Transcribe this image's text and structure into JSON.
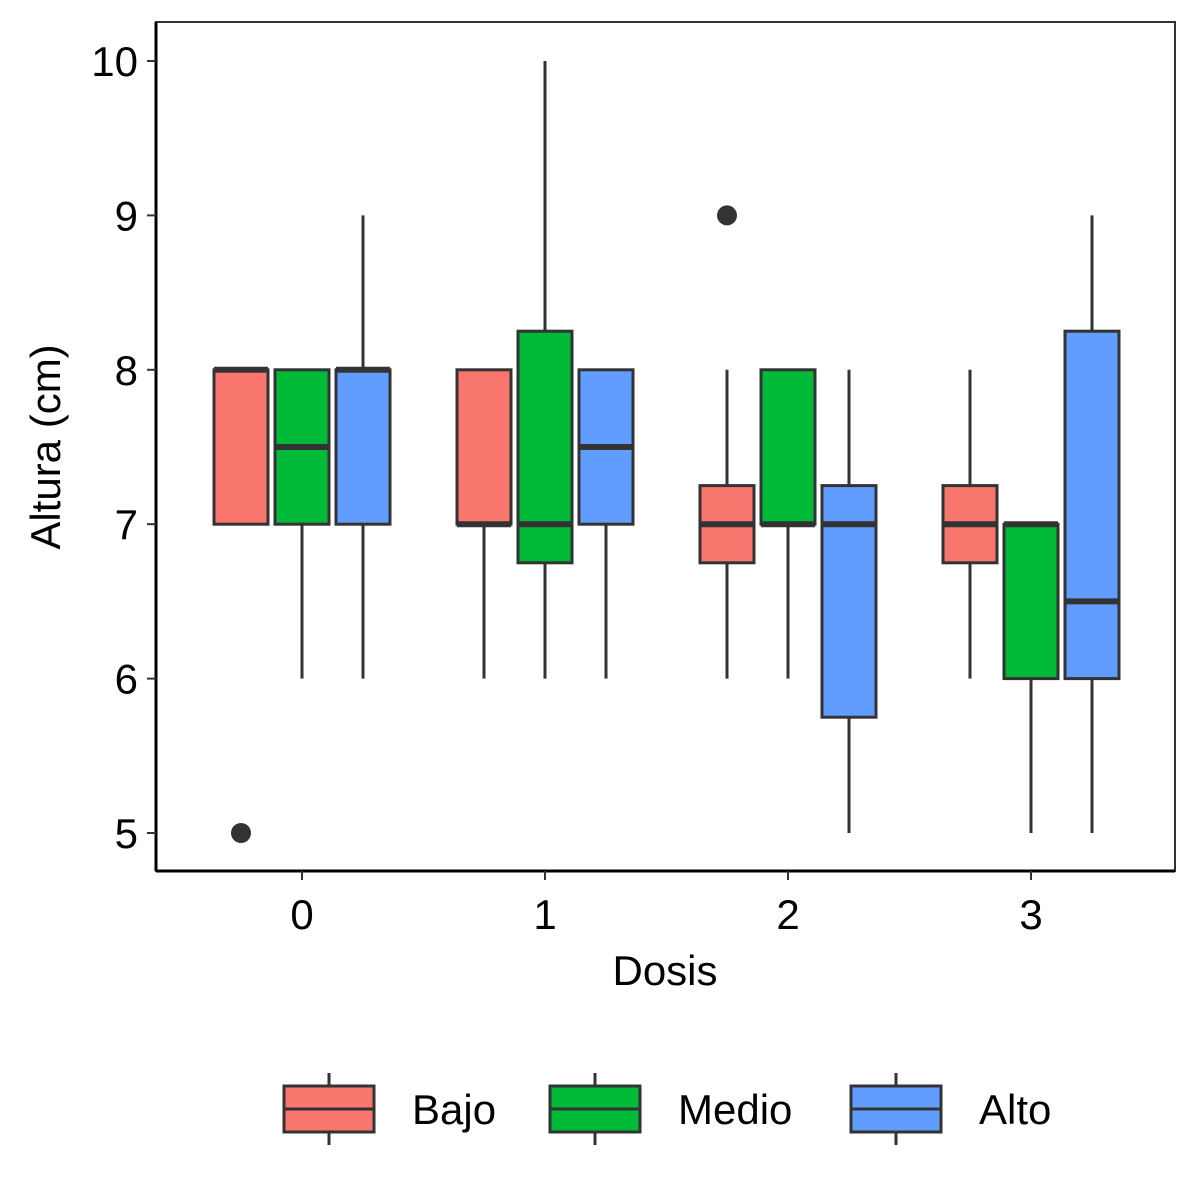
{
  "chart_data": {
    "type": "boxplot",
    "xlabel": "Dosis",
    "ylabel": "Altura (cm)",
    "categories": [
      "0",
      "1",
      "2",
      "3"
    ],
    "ylim": [
      4.75,
      10.25
    ],
    "yticks": [
      5,
      6,
      7,
      8,
      9,
      10
    ],
    "grid": false,
    "legend_position": "bottom",
    "series": [
      {
        "name": "Bajo",
        "color": "#F8766D",
        "boxes": [
          {
            "category": "0",
            "whisker_low": 7,
            "q1": 7,
            "median": 8,
            "q3": 8,
            "whisker_high": 8,
            "outliers": [
              5
            ]
          },
          {
            "category": "1",
            "whisker_low": 6,
            "q1": 7,
            "median": 7,
            "q3": 8,
            "whisker_high": 8,
            "outliers": []
          },
          {
            "category": "2",
            "whisker_low": 6,
            "q1": 6.75,
            "median": 7,
            "q3": 7.25,
            "whisker_high": 8,
            "outliers": [
              9
            ]
          },
          {
            "category": "3",
            "whisker_low": 6,
            "q1": 6.75,
            "median": 7,
            "q3": 7.25,
            "whisker_high": 8,
            "outliers": []
          }
        ]
      },
      {
        "name": "Medio",
        "color": "#00BA38",
        "boxes": [
          {
            "category": "0",
            "whisker_low": 6,
            "q1": 7,
            "median": 7.5,
            "q3": 8,
            "whisker_high": 8,
            "outliers": []
          },
          {
            "category": "1",
            "whisker_low": 6,
            "q1": 6.75,
            "median": 7,
            "q3": 8.25,
            "whisker_high": 10,
            "outliers": []
          },
          {
            "category": "2",
            "whisker_low": 6,
            "q1": 7,
            "median": 7,
            "q3": 8,
            "whisker_high": 8,
            "outliers": []
          },
          {
            "category": "3",
            "whisker_low": 5,
            "q1": 6,
            "median": 7,
            "q3": 7,
            "whisker_high": 7,
            "outliers": []
          }
        ]
      },
      {
        "name": "Alto",
        "color": "#619CFF",
        "boxes": [
          {
            "category": "0",
            "whisker_low": 6,
            "q1": 7,
            "median": 8,
            "q3": 8,
            "whisker_high": 9,
            "outliers": []
          },
          {
            "category": "1",
            "whisker_low": 6,
            "q1": 7,
            "median": 7.5,
            "q3": 8,
            "whisker_high": 8,
            "outliers": []
          },
          {
            "category": "2",
            "whisker_low": 5,
            "q1": 5.75,
            "median": 7,
            "q3": 7.25,
            "whisker_high": 8,
            "outliers": []
          },
          {
            "category": "3",
            "whisker_low": 5,
            "q1": 6,
            "median": 6.5,
            "q3": 8.25,
            "whisker_high": 9,
            "outliers": []
          }
        ]
      }
    ]
  }
}
